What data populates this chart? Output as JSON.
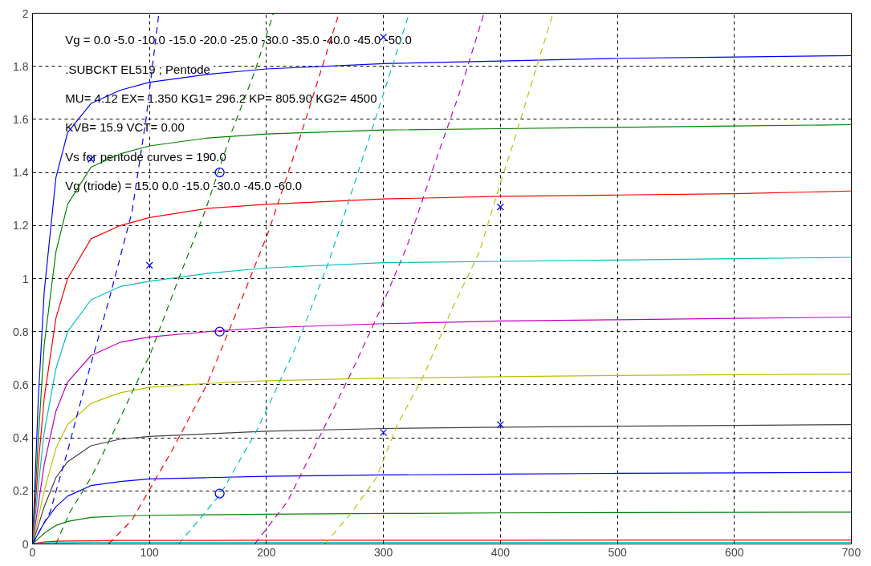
{
  "chart_data": {
    "type": "line",
    "x": [
      0,
      5,
      10,
      20,
      30,
      50,
      75,
      100,
      150,
      200,
      300,
      400,
      500,
      600,
      700
    ],
    "xlim": [
      0,
      700
    ],
    "xticks": [
      0,
      100,
      200,
      300,
      400,
      500,
      600,
      700
    ],
    "ylim": [
      0,
      2
    ],
    "yticks": [
      0,
      0.2,
      0.4,
      0.6,
      0.8,
      1,
      1.2,
      1.4,
      1.6,
      1.8,
      2
    ],
    "grid": true,
    "line_style": "solid",
    "marker": "none",
    "annotations": [
      "Vg =   0.0  -5.0 -10.0 -15.0 -20.0 -25.0 -30.0 -35.0 -40.0 -45.0 -50.0",
      ".SUBCKT EL519 ;  Pentode",
      "MU=  4.12  EX= 1.350  KG1= 296.2  KP= 805.90   KG2= 4500",
      "KVB=  15.9  VCT=  0.00",
      "Vs for pentode curves =  190.0",
      "Vg (triode) =  15.0   0.0 -15.0 -30.0 -45.0 -60.0"
    ],
    "series": [
      {
        "color": "#0000ff",
        "values": [
          0,
          0.55,
          0.95,
          1.38,
          1.55,
          1.66,
          1.71,
          1.74,
          1.77,
          1.79,
          1.81,
          1.82,
          1.83,
          1.835,
          1.84
        ]
      },
      {
        "color": "#008000",
        "values": [
          0,
          0.4,
          0.75,
          1.1,
          1.28,
          1.42,
          1.47,
          1.5,
          1.53,
          1.545,
          1.56,
          1.565,
          1.57,
          1.575,
          1.58
        ]
      },
      {
        "color": "#ff0000",
        "values": [
          0,
          0.3,
          0.55,
          0.85,
          1.0,
          1.15,
          1.2,
          1.23,
          1.265,
          1.28,
          1.3,
          1.31,
          1.315,
          1.32,
          1.33
        ]
      },
      {
        "color": "#00bfbf",
        "values": [
          0,
          0.22,
          0.42,
          0.66,
          0.8,
          0.92,
          0.97,
          0.99,
          1.02,
          1.04,
          1.06,
          1.065,
          1.07,
          1.075,
          1.08
        ]
      },
      {
        "color": "#bf00bf",
        "values": [
          0,
          0.15,
          0.3,
          0.5,
          0.61,
          0.71,
          0.76,
          0.78,
          0.8,
          0.815,
          0.83,
          0.84,
          0.845,
          0.85,
          0.855
        ]
      },
      {
        "color": "#bfbf00",
        "values": [
          0,
          0.1,
          0.2,
          0.36,
          0.45,
          0.53,
          0.57,
          0.59,
          0.605,
          0.615,
          0.625,
          0.63,
          0.635,
          0.638,
          0.64
        ]
      },
      {
        "color": "#404040",
        "values": [
          0,
          0.07,
          0.14,
          0.25,
          0.31,
          0.37,
          0.395,
          0.405,
          0.415,
          0.425,
          0.435,
          0.44,
          0.444,
          0.447,
          0.45
        ]
      },
      {
        "color": "#0000ff",
        "values": [
          0,
          0.04,
          0.08,
          0.14,
          0.18,
          0.22,
          0.235,
          0.245,
          0.25,
          0.255,
          0.26,
          0.263,
          0.266,
          0.268,
          0.27
        ]
      },
      {
        "color": "#008000",
        "values": [
          0,
          0.02,
          0.04,
          0.07,
          0.085,
          0.1,
          0.105,
          0.108,
          0.11,
          0.112,
          0.115,
          0.117,
          0.118,
          0.119,
          0.12
        ]
      },
      {
        "color": "#ff0000",
        "values": [
          0,
          0.004,
          0.007,
          0.01,
          0.011,
          0.012,
          0.013,
          0.013,
          0.013,
          0.014,
          0.014,
          0.014,
          0.015,
          0.015,
          0.015
        ]
      },
      {
        "color": "#00bfbf",
        "values": [
          0,
          0.003,
          0.004,
          0.005,
          0.005,
          0.006,
          0.006,
          0.006,
          0.006,
          0.006,
          0.006,
          0.006,
          0.006,
          0.006,
          0.006
        ]
      },
      {
        "color": "#0000ff",
        "line_style": "dashed",
        "x": [
          0,
          15,
          30,
          45,
          66,
          85,
          97,
          108
        ],
        "values": [
          0,
          0.12,
          0.35,
          0.6,
          0.93,
          1.25,
          1.6,
          2.0
        ]
      },
      {
        "color": "#008000",
        "line_style": "dashed",
        "x": [
          20,
          32,
          50,
          68,
          101,
          125,
          148,
          170,
          190,
          206
        ],
        "values": [
          0,
          0.12,
          0.25,
          0.41,
          0.72,
          1.0,
          1.26,
          1.55,
          1.78,
          2.0
        ]
      },
      {
        "color": "#ff0000",
        "line_style": "dashed",
        "x": [
          65,
          85,
          119,
          149,
          175,
          202,
          230,
          262
        ],
        "values": [
          0,
          0.09,
          0.35,
          0.6,
          0.88,
          1.18,
          1.55,
          2.0
        ]
      },
      {
        "color": "#00bfbf",
        "line_style": "dashed",
        "x": [
          125,
          161,
          192,
          227,
          253,
          268,
          293,
          322
        ],
        "values": [
          0,
          0.19,
          0.43,
          0.76,
          1.06,
          1.26,
          1.6,
          2.0
        ]
      },
      {
        "color": "#bf00bf",
        "line_style": "dashed",
        "x": [
          190,
          218,
          245,
          273,
          296,
          320,
          342,
          365,
          386
        ],
        "values": [
          0,
          0.16,
          0.4,
          0.65,
          0.87,
          1.12,
          1.41,
          1.7,
          2.0
        ]
      },
      {
        "color": "#bfbf00",
        "line_style": "dashed",
        "x": [
          250,
          273,
          294,
          312,
          335,
          358,
          382,
          400,
          411,
          445
        ],
        "values": [
          0,
          0.12,
          0.25,
          0.45,
          0.64,
          0.88,
          1.1,
          1.36,
          1.51,
          2.0
        ]
      },
      {
        "type": "scatter",
        "marker": "cross",
        "color": "#0000ff",
        "x": [
          50,
          100,
          300,
          300,
          400,
          400
        ],
        "values": [
          1.45,
          1.05,
          1.91,
          0.42,
          1.27,
          0.45
        ]
      },
      {
        "type": "scatter",
        "marker": "circle",
        "color": "#0000ff",
        "x": [
          160,
          160,
          160
        ],
        "values": [
          1.4,
          0.8,
          0.19
        ]
      }
    ]
  }
}
